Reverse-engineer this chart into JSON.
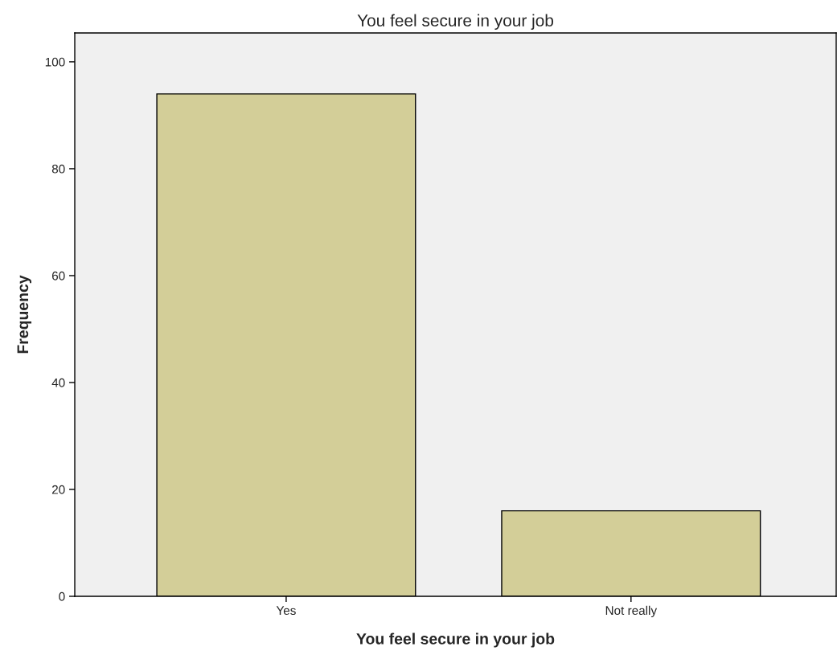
{
  "chart_data": {
    "type": "bar",
    "title": "You feel secure in your job",
    "xlabel": "You feel secure in your job",
    "ylabel": "Frequency",
    "categories": [
      "Yes",
      "Not really"
    ],
    "values": [
      94,
      16
    ],
    "color": "#d3ce98",
    "ylim": [
      0,
      105.4
    ],
    "yticks": [
      0,
      20,
      40,
      60,
      80,
      100
    ],
    "grid": false,
    "legend": false
  }
}
